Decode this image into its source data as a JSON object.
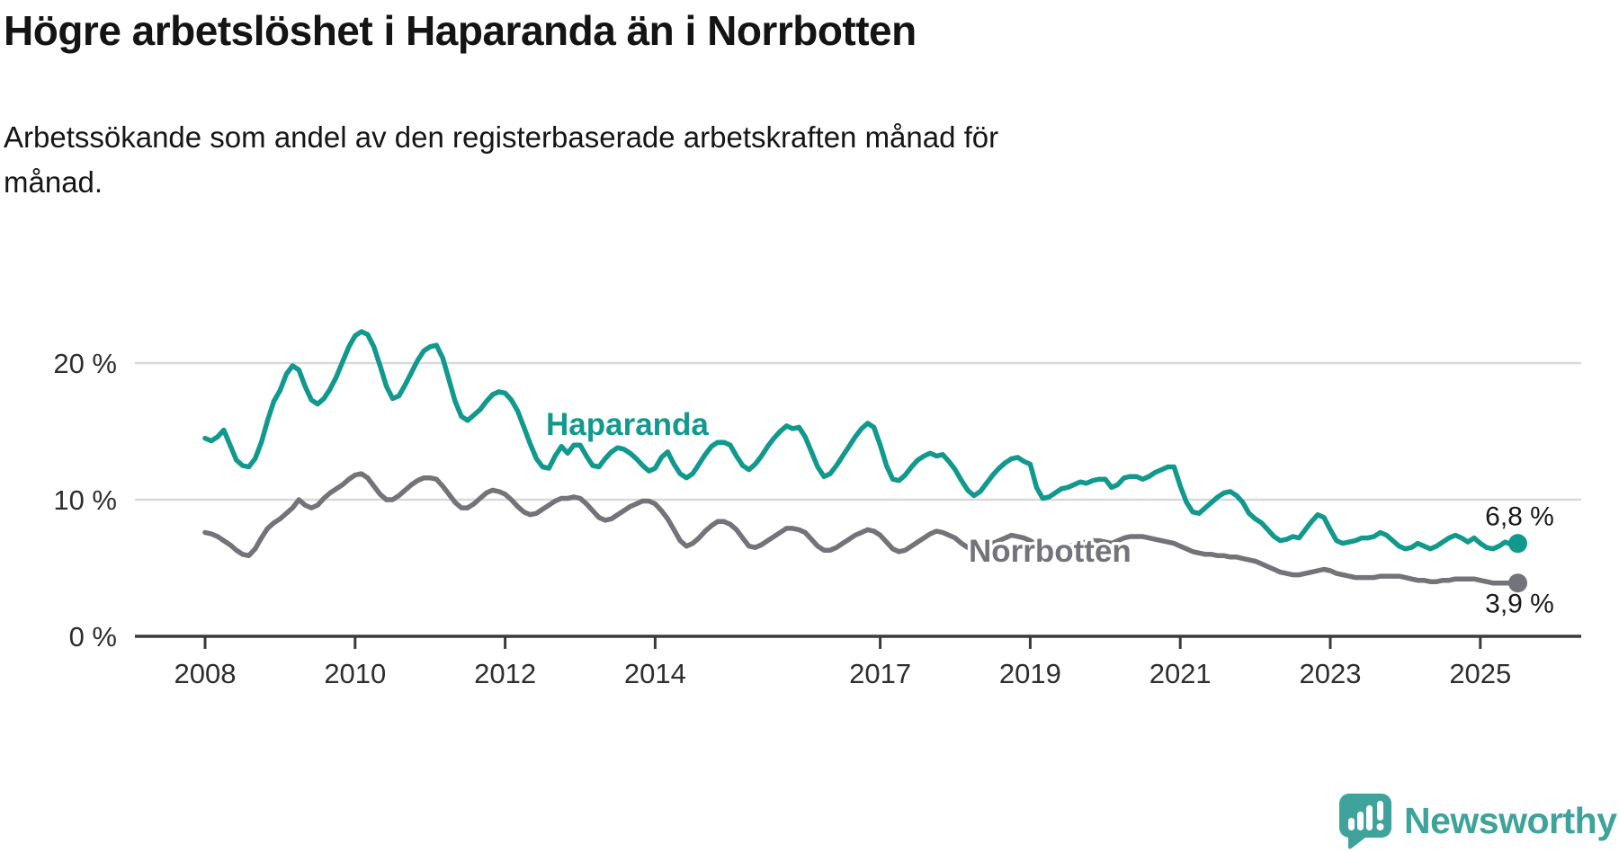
{
  "title": "Högre arbetslöshet i Haparanda än i Norrbotten",
  "subtitle_line1": "Arbetssökande som andel av den registerbaserade arbetskraften månad för",
  "subtitle_line2": "månad.",
  "footer": {
    "brand": "Newsworthy"
  },
  "colors": {
    "haparanda": "#12998D",
    "norrbotten": "#73737A",
    "grid": "#D9D9D9",
    "axis": "#3A3A3A",
    "value_text": "#1A1A1A",
    "tick_text": "#2E2E2E",
    "logo": "#3FA29B"
  },
  "chart_data": {
    "type": "line",
    "title": "Högre arbetslöshet i Haparanda än i Norrbotten",
    "subtitle": "Arbetssökande som andel av den registerbaserade arbetskraften månad för månad.",
    "unit": "%",
    "frequency": "monthly",
    "x_start": "2008-01",
    "x_end": "2025-07",
    "ylim": [
      0,
      23
    ],
    "grid": "horizontal",
    "legend_position": "inline-labels",
    "y_ticks": [
      {
        "value": 0,
        "label": "0 %"
      },
      {
        "value": 10,
        "label": "10 %"
      },
      {
        "value": 20,
        "label": "20 %"
      }
    ],
    "x_ticks": [
      {
        "year": 2008,
        "label": "2008"
      },
      {
        "year": 2010,
        "label": "2010"
      },
      {
        "year": 2012,
        "label": "2012"
      },
      {
        "year": 2014,
        "label": "2014"
      },
      {
        "year": 2017,
        "label": "2017"
      },
      {
        "year": 2019,
        "label": "2019"
      },
      {
        "year": 2021,
        "label": "2021"
      },
      {
        "year": 2023,
        "label": "2023"
      },
      {
        "year": 2025,
        "label": "2025"
      }
    ],
    "series": [
      {
        "name": "Haparanda",
        "end_label": "6,8 %",
        "end_value": 6.8,
        "values": [
          14.5,
          14.3,
          14.6,
          15.1,
          14.0,
          12.9,
          12.5,
          12.4,
          13.0,
          14.2,
          15.8,
          17.2,
          18.0,
          19.2,
          19.8,
          19.5,
          18.3,
          17.3,
          17.0,
          17.4,
          18.1,
          19.0,
          20.1,
          21.2,
          22.0,
          22.3,
          22.1,
          21.2,
          19.8,
          18.3,
          17.4,
          17.6,
          18.4,
          19.3,
          20.2,
          20.9,
          21.2,
          21.3,
          20.4,
          18.8,
          17.2,
          16.1,
          15.8,
          16.2,
          16.6,
          17.2,
          17.7,
          17.9,
          17.8,
          17.3,
          16.5,
          15.3,
          14.1,
          13.0,
          12.4,
          12.3,
          13.2,
          13.9,
          13.4,
          14.0,
          14.0,
          13.2,
          12.5,
          12.4,
          13.0,
          13.5,
          13.8,
          13.7,
          13.4,
          13.0,
          12.5,
          12.1,
          12.3,
          13.1,
          13.5,
          12.6,
          11.9,
          11.6,
          11.9,
          12.6,
          13.3,
          13.9,
          14.2,
          14.2,
          14.0,
          13.2,
          12.5,
          12.2,
          12.6,
          13.2,
          13.9,
          14.5,
          15.0,
          15.4,
          15.2,
          15.3,
          14.6,
          13.5,
          12.4,
          11.7,
          11.9,
          12.5,
          13.2,
          13.9,
          14.6,
          15.2,
          15.6,
          15.3,
          14.0,
          12.5,
          11.5,
          11.4,
          11.8,
          12.4,
          12.9,
          13.2,
          13.4,
          13.2,
          13.3,
          12.8,
          12.2,
          11.4,
          10.7,
          10.3,
          10.6,
          11.2,
          11.8,
          12.3,
          12.7,
          13.0,
          13.1,
          12.8,
          12.6,
          10.9,
          10.1,
          10.2,
          10.5,
          10.8,
          10.9,
          11.1,
          11.3,
          11.2,
          11.4,
          11.5,
          11.5,
          10.9,
          11.1,
          11.6,
          11.7,
          11.7,
          11.5,
          11.7,
          12.0,
          12.2,
          12.4,
          12.4,
          11.0,
          9.8,
          9.1,
          9.0,
          9.4,
          9.8,
          10.2,
          10.5,
          10.6,
          10.3,
          9.8,
          9.0,
          8.6,
          8.3,
          7.8,
          7.3,
          7.0,
          7.1,
          7.3,
          7.2,
          7.8,
          8.4,
          8.9,
          8.7,
          7.8,
          7.0,
          6.8,
          6.9,
          7.0,
          7.2,
          7.2,
          7.3,
          7.6,
          7.4,
          7.0,
          6.6,
          6.4,
          6.5,
          6.8,
          6.6,
          6.4,
          6.6,
          6.9,
          7.2,
          7.4,
          7.2,
          6.9,
          7.2,
          6.8,
          6.5,
          6.4,
          6.6,
          6.9,
          6.7,
          6.8
        ]
      },
      {
        "name": "Norrbotten",
        "end_label": "3,9 %",
        "end_value": 3.9,
        "values": [
          7.6,
          7.5,
          7.3,
          7.0,
          6.7,
          6.3,
          6.0,
          5.9,
          6.4,
          7.2,
          7.9,
          8.3,
          8.6,
          9.0,
          9.4,
          10.0,
          9.6,
          9.4,
          9.6,
          10.1,
          10.5,
          10.8,
          11.1,
          11.5,
          11.8,
          11.9,
          11.6,
          11.0,
          10.4,
          10.0,
          10.0,
          10.3,
          10.7,
          11.1,
          11.4,
          11.6,
          11.6,
          11.5,
          11.0,
          10.4,
          9.8,
          9.4,
          9.4,
          9.7,
          10.1,
          10.5,
          10.7,
          10.6,
          10.4,
          10.0,
          9.5,
          9.1,
          8.9,
          9.0,
          9.3,
          9.6,
          9.9,
          10.1,
          10.1,
          10.2,
          10.1,
          9.7,
          9.2,
          8.7,
          8.5,
          8.6,
          8.9,
          9.2,
          9.5,
          9.7,
          9.9,
          9.9,
          9.7,
          9.2,
          8.6,
          7.8,
          7.0,
          6.6,
          6.8,
          7.2,
          7.7,
          8.1,
          8.4,
          8.4,
          8.2,
          7.8,
          7.2,
          6.6,
          6.5,
          6.7,
          7.0,
          7.3,
          7.6,
          7.9,
          7.9,
          7.8,
          7.6,
          7.1,
          6.6,
          6.3,
          6.3,
          6.5,
          6.8,
          7.1,
          7.4,
          7.6,
          7.8,
          7.7,
          7.4,
          6.9,
          6.4,
          6.2,
          6.3,
          6.6,
          6.9,
          7.2,
          7.5,
          7.7,
          7.6,
          7.4,
          7.2,
          6.8,
          6.5,
          6.3,
          6.4,
          6.6,
          6.8,
          7.0,
          7.2,
          7.4,
          7.3,
          7.2,
          7.0,
          6.7,
          6.4,
          6.3,
          6.4,
          6.5,
          6.6,
          6.7,
          6.8,
          6.9,
          7.0,
          7.0,
          6.9,
          6.8,
          7.0,
          7.2,
          7.3,
          7.3,
          7.3,
          7.2,
          7.1,
          7.0,
          6.9,
          6.8,
          6.6,
          6.4,
          6.2,
          6.1,
          6.0,
          6.0,
          5.9,
          5.9,
          5.8,
          5.8,
          5.7,
          5.6,
          5.5,
          5.3,
          5.1,
          4.9,
          4.7,
          4.6,
          4.5,
          4.5,
          4.6,
          4.7,
          4.8,
          4.9,
          4.8,
          4.6,
          4.5,
          4.4,
          4.3,
          4.3,
          4.3,
          4.3,
          4.4,
          4.4,
          4.4,
          4.4,
          4.3,
          4.2,
          4.1,
          4.1,
          4.0,
          4.0,
          4.1,
          4.1,
          4.2,
          4.2,
          4.2,
          4.2,
          4.1,
          4.0,
          3.9,
          3.9,
          3.9,
          3.9,
          3.9
        ]
      }
    ]
  }
}
